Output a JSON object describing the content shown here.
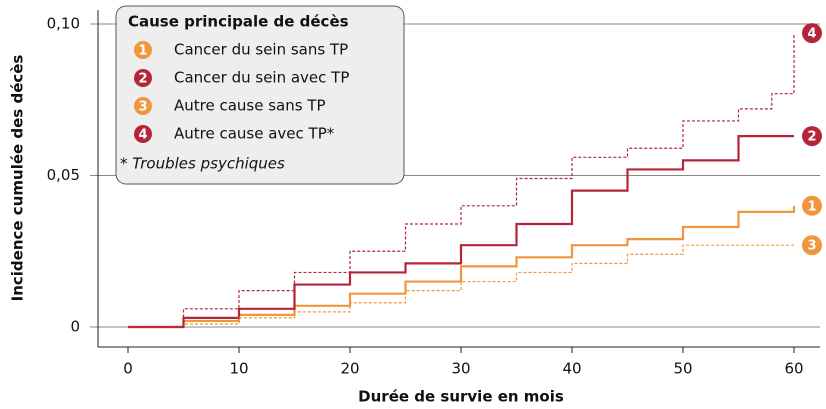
{
  "chart_data": {
    "type": "step",
    "x_label": "Durée de survie en mois",
    "y_label": "Incidence cumulée des décès",
    "legend_title": "Cause principale de décès",
    "legend_note": "* Troubles psychiques",
    "xlim": [
      0,
      60
    ],
    "xticks": [
      0,
      10,
      20,
      30,
      40,
      50,
      60
    ],
    "ylim": [
      0,
      0.1
    ],
    "yticks": [
      {
        "value": 0,
        "label": "0"
      },
      {
        "value": 0.05,
        "label": "0,05"
      },
      {
        "value": 0.1,
        "label": "0,10"
      }
    ],
    "grid": true,
    "series": [
      {
        "name": "Cancer du sein sans TP",
        "label": "1",
        "color": "#f0963c",
        "dashed": false,
        "x": [
          0,
          5,
          10,
          15,
          20,
          25,
          30,
          35,
          40,
          45,
          50,
          55,
          60
        ],
        "values": [
          0,
          0.002,
          0.004,
          0.007,
          0.011,
          0.015,
          0.02,
          0.023,
          0.027,
          0.029,
          0.033,
          0.038,
          0.04
        ]
      },
      {
        "name": "Cancer du sein avec TP",
        "label": "2",
        "color": "#b5253a",
        "dashed": false,
        "x": [
          0,
          5,
          10,
          15,
          20,
          25,
          30,
          35,
          40,
          45,
          50,
          55,
          60
        ],
        "values": [
          0,
          0.003,
          0.006,
          0.014,
          0.018,
          0.021,
          0.027,
          0.034,
          0.045,
          0.052,
          0.055,
          0.063,
          0.063
        ]
      },
      {
        "name": "Autre cause sans TP",
        "label": "3",
        "color": "#f0963c",
        "dashed": true,
        "x": [
          0,
          5,
          10,
          15,
          20,
          25,
          30,
          35,
          40,
          45,
          50,
          55,
          60
        ],
        "values": [
          0,
          0.001,
          0.003,
          0.005,
          0.008,
          0.012,
          0.015,
          0.018,
          0.021,
          0.024,
          0.027,
          0.027,
          0.027
        ]
      },
      {
        "name": "Autre cause avec TP*",
        "label": "4",
        "color": "#b5253a",
        "dashed": true,
        "x": [
          0,
          5,
          10,
          15,
          20,
          25,
          30,
          35,
          40,
          45,
          50,
          55,
          58,
          60
        ],
        "values": [
          0,
          0.006,
          0.012,
          0.018,
          0.025,
          0.034,
          0.04,
          0.049,
          0.056,
          0.059,
          0.068,
          0.072,
          0.077,
          0.097
        ]
      }
    ]
  }
}
